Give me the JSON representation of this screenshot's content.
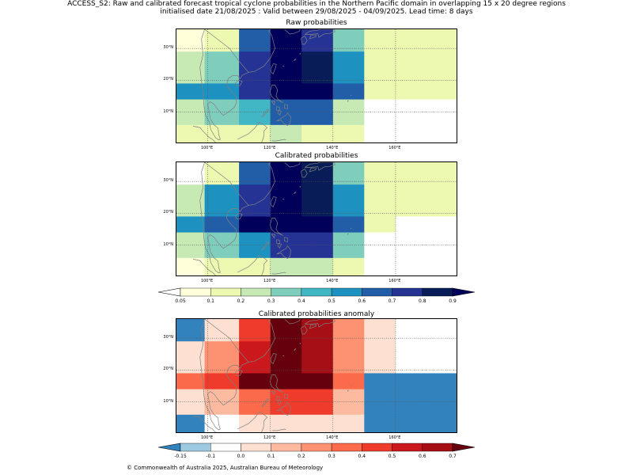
{
  "title": {
    "line1": "ACCESS_S2: Raw and calibrated forecast tropical cyclone probabilities in the Northern Pacific domain in overlapping 15 x 20 degree regions",
    "line2": "initialised date 21/08/2025 :  Valid between 29/08/2025 - 04/09/2025. Lead time: 8 days"
  },
  "copyright": "© Commonwealth of Australia 2025, Australian Bureau of Meteorology",
  "axes": {
    "xticks": [
      "100°E",
      "120°E",
      "140°E",
      "160°E"
    ],
    "yticks": [
      "30°N",
      "20°N",
      "10°N"
    ]
  },
  "colors": {
    "prob_bins": [
      "#ffffff",
      "#ffffd9",
      "#edf8b1",
      "#c7e9b4",
      "#7fcdbb",
      "#41b6c4",
      "#1d91c0",
      "#225ea8",
      "#253494",
      "#081d58",
      "#00005a"
    ],
    "anom_bins": [
      "#3182bd",
      "#9ecae1",
      "#ffffff",
      "#fee0d2",
      "#fcbba1",
      "#fc9272",
      "#fb6a4a",
      "#ef3b2c",
      "#cb181d",
      "#a50f15",
      "#67000d"
    ],
    "coastline": "#808080",
    "grid": "#555555"
  },
  "chart_data": [
    {
      "type": "heatmap",
      "title": "Raw probabilities",
      "x_edges_lon": [
        90,
        99,
        110,
        120,
        130,
        140,
        150,
        160,
        180
      ],
      "y_edges_lat": [
        0,
        6,
        14,
        19,
        29,
        36
      ],
      "values_by_row_north_to_south": [
        [
          0.05,
          0.15,
          0.65,
          0.9,
          0.75,
          0.35,
          0.15,
          0.1
        ],
        [
          0.25,
          0.35,
          0.7,
          0.95,
          0.85,
          0.5,
          0.15,
          0.1
        ],
        [
          0.5,
          0.55,
          0.75,
          0.95,
          0.95,
          0.6,
          0.15,
          0.1
        ],
        [
          0.2,
          0.3,
          0.45,
          0.6,
          0.6,
          0.25,
          0.0,
          0.0
        ],
        [
          0.1,
          0.1,
          0.15,
          0.2,
          0.15,
          0.1,
          0.0,
          0.0
        ]
      ]
    },
    {
      "type": "heatmap",
      "title": "Calibrated probabilities",
      "x_edges_lon": [
        90,
        99,
        110,
        120,
        130,
        140,
        150,
        160,
        180
      ],
      "y_edges_lat": [
        0,
        6,
        14,
        19,
        29,
        36
      ],
      "values_by_row_north_to_south": [
        [
          0.0,
          0.15,
          0.65,
          0.95,
          0.8,
          0.35,
          0.15,
          0.1
        ],
        [
          0.25,
          0.5,
          0.75,
          0.95,
          0.85,
          0.5,
          0.15,
          0.1
        ],
        [
          0.5,
          0.65,
          0.95,
          0.95,
          0.95,
          0.6,
          0.15,
          0.0
        ],
        [
          0.2,
          0.35,
          0.55,
          0.7,
          0.7,
          0.35,
          0.0,
          0.0
        ],
        [
          0.05,
          0.1,
          0.15,
          0.25,
          0.25,
          0.15,
          0.0,
          0.0
        ]
      ]
    },
    {
      "type": "heatmap",
      "title": "Calibrated probabilities anomaly",
      "x_edges_lon": [
        90,
        99,
        110,
        120,
        130,
        140,
        150,
        160,
        180
      ],
      "y_edges_lat": [
        0,
        6,
        14,
        19,
        29,
        36
      ],
      "values_by_row_north_to_south": [
        [
          -0.2,
          0.0,
          0.45,
          0.75,
          0.65,
          0.25,
          0.0,
          -0.1
        ],
        [
          0.05,
          0.25,
          0.55,
          0.75,
          0.65,
          0.25,
          0.0,
          -0.1
        ],
        [
          0.3,
          0.45,
          0.75,
          0.75,
          0.75,
          0.35,
          -0.2,
          -0.2
        ],
        [
          0.05,
          0.15,
          0.35,
          0.45,
          0.45,
          0.15,
          -0.2,
          -0.2
        ],
        [
          -0.2,
          -0.1,
          0.05,
          0.05,
          0.05,
          0.0,
          -0.2,
          -0.2
        ]
      ]
    }
  ],
  "colorbars": [
    {
      "name": "probability",
      "boundaries": [
        0.05,
        0.1,
        0.2,
        0.3,
        0.4,
        0.5,
        0.6,
        0.7,
        0.8,
        0.9
      ],
      "labels": [
        "0.05",
        "0.1",
        "0.2",
        "0.3",
        "0.4",
        "0.5",
        "0.6",
        "0.7",
        "0.8",
        "0.9"
      ]
    },
    {
      "name": "anomaly",
      "boundaries": [
        -0.15,
        -0.1,
        0.0,
        0.1,
        0.2,
        0.3,
        0.4,
        0.5,
        0.6,
        0.7
      ],
      "labels": [
        "-0.15",
        "-0.1",
        "0.0",
        "0.1",
        "0.2",
        "0.3",
        "0.4",
        "0.5",
        "0.6",
        "0.7"
      ]
    }
  ]
}
